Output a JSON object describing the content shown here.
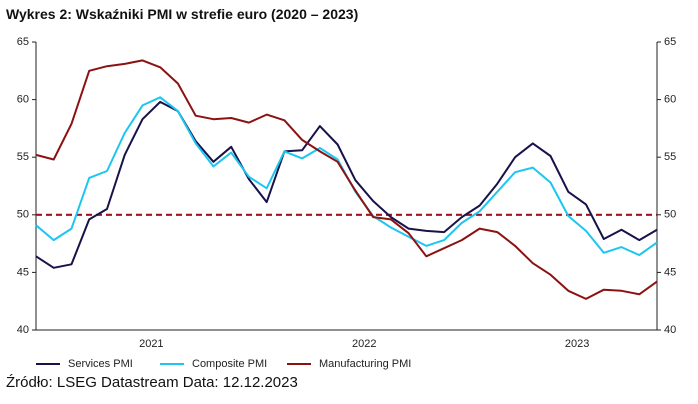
{
  "chart_data": {
    "type": "line",
    "title": "Wykres 2: Wskaźniki PMI w strefie euro (2020 – 2023)",
    "source": "Źródło: LSEG Datastream Data: 12.12.2023",
    "categories": [
      null,
      null,
      null,
      null,
      null,
      null,
      "2021",
      null,
      null,
      null,
      null,
      null,
      null,
      null,
      null,
      null,
      null,
      null,
      "2022",
      null,
      null,
      null,
      null,
      null,
      null,
      null,
      null,
      null,
      null,
      null,
      "2023",
      null,
      null,
      null,
      null,
      null
    ],
    "series": [
      {
        "name": "Services PMI",
        "color": "#17134a",
        "values": [
          46.4,
          45.4,
          45.7,
          49.6,
          50.5,
          55.2,
          58.3,
          59.8,
          59.0,
          56.4,
          54.6,
          55.9,
          53.1,
          51.1,
          55.5,
          55.6,
          57.7,
          56.1,
          53.0,
          51.2,
          49.8,
          48.8,
          48.6,
          48.5,
          49.8,
          50.8,
          52.7,
          55.0,
          56.2,
          55.1,
          52.0,
          50.9,
          47.9,
          48.7,
          47.8,
          48.7
        ]
      },
      {
        "name": "Composite PMI",
        "color": "#1cc6f0",
        "values": [
          49.1,
          47.8,
          48.8,
          53.2,
          53.8,
          57.1,
          59.5,
          60.2,
          59.0,
          56.2,
          54.2,
          55.4,
          53.3,
          52.3,
          55.5,
          54.9,
          55.8,
          54.8,
          52.0,
          49.9,
          48.9,
          48.1,
          47.3,
          47.8,
          49.3,
          50.3,
          52.0,
          53.7,
          54.1,
          52.8,
          49.9,
          48.6,
          46.7,
          47.2,
          46.5,
          47.6
        ]
      },
      {
        "name": "Manufacturing PMI",
        "color": "#8c1212",
        "values": [
          55.2,
          54.8,
          57.9,
          62.5,
          62.9,
          63.1,
          63.4,
          62.8,
          61.4,
          58.6,
          58.3,
          58.4,
          58.0,
          58.7,
          58.2,
          56.5,
          55.5,
          54.6,
          52.1,
          49.8,
          49.6,
          48.4,
          46.4,
          47.1,
          47.8,
          48.8,
          48.5,
          47.3,
          45.8,
          44.8,
          43.4,
          42.7,
          43.5,
          43.4,
          43.1,
          44.2
        ]
      }
    ],
    "reference_line": {
      "value": 50,
      "color": "#a0141e"
    },
    "ylim": [
      40,
      65
    ],
    "yticks": [
      40,
      45,
      50,
      55,
      60,
      65
    ],
    "y2lim": [
      40,
      65
    ],
    "y2ticks": [
      40,
      45,
      50,
      55,
      60,
      65
    ]
  }
}
